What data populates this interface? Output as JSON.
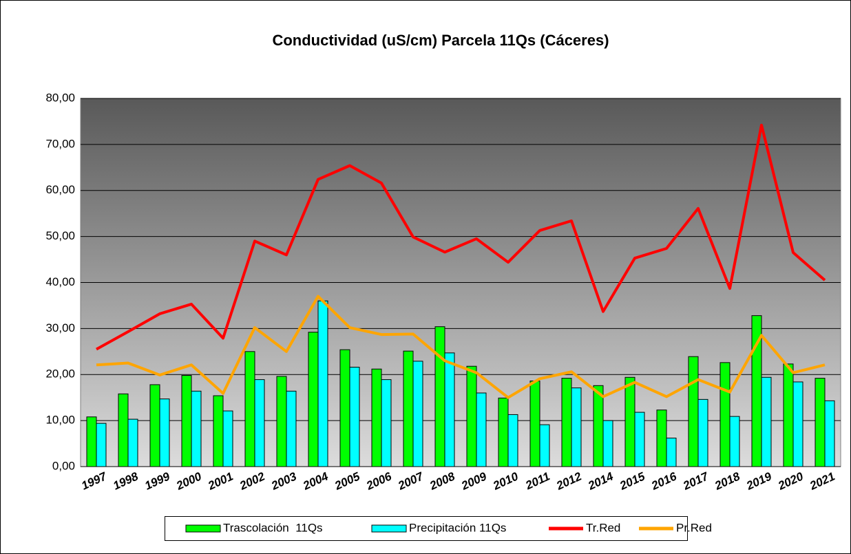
{
  "chart_data": {
    "type": "bar_line",
    "title": "Conductividad (uS/cm) Parcela 11Qs (Cáceres)",
    "categories": [
      "1997",
      "1998",
      "1999",
      "2000",
      "2001",
      "2002",
      "2003",
      "2004",
      "2005",
      "2006",
      "2007",
      "2008",
      "2009",
      "2010",
      "2011",
      "2012",
      "2014",
      "2015",
      "2016",
      "2017",
      "2018",
      "2019",
      "2020",
      "2021"
    ],
    "series": [
      {
        "name": "Trascolación  11Qs",
        "type": "bar",
        "color": "#00ff00",
        "values": [
          10.8,
          15.8,
          17.8,
          19.8,
          15.4,
          25.0,
          19.6,
          29.2,
          25.4,
          21.2,
          25.1,
          30.4,
          21.8,
          14.9,
          18.6,
          19.2,
          17.6,
          19.4,
          12.3,
          23.9,
          22.6,
          32.8,
          22.3,
          19.2
        ]
      },
      {
        "name": "Precipitación 11Qs",
        "type": "bar",
        "color": "#00ffff",
        "values": [
          9.4,
          10.3,
          14.7,
          16.4,
          12.1,
          18.9,
          16.4,
          36.0,
          21.6,
          18.9,
          22.9,
          24.7,
          16.0,
          11.3,
          9.1,
          17.1,
          10.0,
          11.8,
          6.2,
          14.6,
          10.9,
          19.4,
          18.4,
          14.3
        ]
      },
      {
        "name": "Tr.Red",
        "type": "line",
        "color": "#ff0000",
        "values": [
          25.5,
          29.3,
          33.2,
          35.3,
          27.9,
          49.0,
          46.0,
          62.4,
          65.4,
          61.6,
          49.9,
          46.6,
          49.5,
          44.4,
          51.3,
          53.4,
          33.7,
          45.3,
          47.4,
          56.1,
          38.7,
          74.2,
          46.5,
          40.5
        ]
      },
      {
        "name": "Pr.Red",
        "type": "line",
        "color": "#ffa500",
        "values": [
          22.1,
          22.5,
          19.9,
          22.1,
          15.9,
          30.2,
          25.0,
          37.0,
          30.2,
          28.7,
          28.8,
          23.0,
          20.4,
          15.0,
          19.1,
          20.6,
          15.2,
          18.3,
          15.2,
          18.9,
          16.2,
          28.5,
          20.4,
          22.1
        ]
      }
    ],
    "ylim": [
      0,
      80
    ],
    "yticks": [
      {
        "value": 0,
        "label": "0,00"
      },
      {
        "value": 10,
        "label": "10,00"
      },
      {
        "value": 20,
        "label": "20,00"
      },
      {
        "value": 30,
        "label": "30,00"
      },
      {
        "value": 40,
        "label": "40,00"
      },
      {
        "value": 50,
        "label": "50,00"
      },
      {
        "value": 60,
        "label": "60,00"
      },
      {
        "value": 70,
        "label": "70,00"
      },
      {
        "value": 80,
        "label": "80,00"
      }
    ],
    "grid": true,
    "legend": "bottom"
  }
}
